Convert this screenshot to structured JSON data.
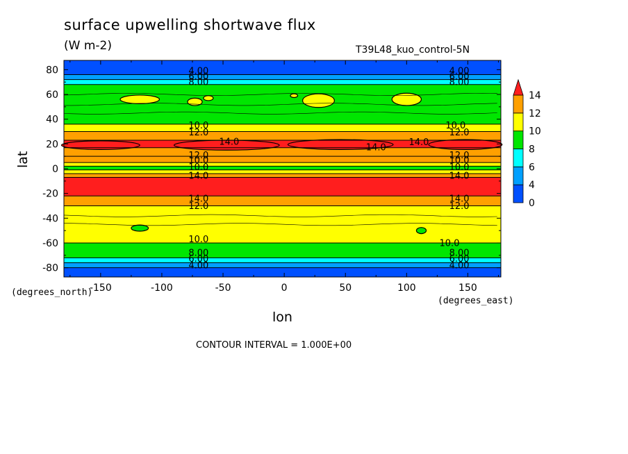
{
  "header": {
    "title": "surface upwelling shortwave flux",
    "units": "(W m-2)",
    "dataset": "T39L48_kuo_control-5N"
  },
  "footer": {
    "contour_interval": "CONTOUR INTERVAL = 1.000E+00"
  },
  "colors": {
    "levels": [
      "#0050ff",
      "#00a0ff",
      "#00ffff",
      "#00e600",
      "#ffff00",
      "#ffa000",
      "#ff1e1e"
    ],
    "contour": "#000000"
  },
  "chart_data": {
    "type": "heatmap",
    "title": "surface upwelling shortwave flux",
    "subtitle": "(W m-2)",
    "xlabel": "lon",
    "ylabel": "lat",
    "x_units": "(degrees_east)",
    "y_units": "(degrees_north)",
    "xlim": [
      -180,
      177
    ],
    "ylim": [
      -87.5,
      87.5
    ],
    "x_ticks": [
      -150,
      -100,
      -50,
      0,
      50,
      100,
      150
    ],
    "y_ticks": [
      -80,
      -60,
      -40,
      -20,
      0,
      20,
      40,
      60,
      80
    ],
    "colorbar": {
      "ticks": [
        0,
        4,
        6,
        8,
        10,
        12,
        14
      ],
      "levels": [
        0,
        4,
        6,
        8,
        10,
        12,
        14
      ],
      "extend": "max"
    },
    "contour_interval": 1.0,
    "zonal_bands": [
      {
        "lat_range": [
          -87.5,
          -80
        ],
        "value": 3
      },
      {
        "lat_range": [
          -80,
          -76
        ],
        "value": 5
      },
      {
        "lat_range": [
          -76,
          -72
        ],
        "value": 7
      },
      {
        "lat_range": [
          -72,
          -60
        ],
        "value": 9
      },
      {
        "lat_range": [
          -60,
          -30
        ],
        "value": 11
      },
      {
        "lat_range": [
          -30,
          -22
        ],
        "value": 13
      },
      {
        "lat_range": [
          -22,
          -7
        ],
        "value": 15
      },
      {
        "lat_range": [
          -7,
          -4
        ],
        "value": 13
      },
      {
        "lat_range": [
          -4,
          -1
        ],
        "value": 11
      },
      {
        "lat_range": [
          -1,
          2
        ],
        "value": 9
      },
      {
        "lat_range": [
          2,
          5
        ],
        "value": 11
      },
      {
        "lat_range": [
          5,
          10
        ],
        "value": 13
      },
      {
        "lat_range": [
          10,
          17
        ],
        "value": 12.5
      },
      {
        "lat_range": [
          17,
          23
        ],
        "value": 15
      },
      {
        "lat_range": [
          23,
          30
        ],
        "value": 13
      },
      {
        "lat_range": [
          30,
          36
        ],
        "value": 11
      },
      {
        "lat_range": [
          36,
          68
        ],
        "value": 9
      },
      {
        "lat_range": [
          68,
          72
        ],
        "value": 7
      },
      {
        "lat_range": [
          72,
          76
        ],
        "value": 5
      },
      {
        "lat_range": [
          76,
          87.5
        ],
        "value": 3
      }
    ],
    "contour_labels": [
      {
        "text": "4.00",
        "lon": -70,
        "lat": 79
      },
      {
        "text": "6.00",
        "lon": -70,
        "lat": 74.5
      },
      {
        "text": "8.00",
        "lon": -70,
        "lat": 70
      },
      {
        "text": "4.00",
        "lon": 143,
        "lat": 79
      },
      {
        "text": "6.00",
        "lon": 143,
        "lat": 74.5
      },
      {
        "text": "8.00",
        "lon": 143,
        "lat": 70
      },
      {
        "text": "10.0",
        "lon": -70,
        "lat": 35
      },
      {
        "text": "12.0",
        "lon": -70,
        "lat": 29.5
      },
      {
        "text": "10.0",
        "lon": 140,
        "lat": 35
      },
      {
        "text": "12.0",
        "lon": 143,
        "lat": 29.5
      },
      {
        "text": "14.0",
        "lon": -45,
        "lat": 22
      },
      {
        "text": "14.0",
        "lon": 75,
        "lat": 17.5
      },
      {
        "text": "14.0",
        "lon": 110,
        "lat": 21.5
      },
      {
        "text": "12.0",
        "lon": -70,
        "lat": 11
      },
      {
        "text": "10.0",
        "lon": -70,
        "lat": 7
      },
      {
        "text": "12.0",
        "lon": 143,
        "lat": 11
      },
      {
        "text": "10.0",
        "lon": 143,
        "lat": 7
      },
      {
        "text": "10.0",
        "lon": -70,
        "lat": 1.5
      },
      {
        "text": "14.0",
        "lon": -70,
        "lat": -5.5
      },
      {
        "text": "10.0",
        "lon": 143,
        "lat": 1.5
      },
      {
        "text": "14.0",
        "lon": 143,
        "lat": -5.5
      },
      {
        "text": "14.0",
        "lon": -70,
        "lat": -24
      },
      {
        "text": "12.0",
        "lon": -70,
        "lat": -30
      },
      {
        "text": "14.0",
        "lon": 143,
        "lat": -24
      },
      {
        "text": "12.0",
        "lon": 143,
        "lat": -30
      },
      {
        "text": "10.0",
        "lon": -70,
        "lat": -57
      },
      {
        "text": "10.0",
        "lon": 135,
        "lat": -60
      },
      {
        "text": "8.00",
        "lon": -70,
        "lat": -68
      },
      {
        "text": "6.00",
        "lon": -70,
        "lat": -72.5
      },
      {
        "text": "4.00",
        "lon": -70,
        "lat": -78
      },
      {
        "text": "8.00",
        "lon": 143,
        "lat": -68
      },
      {
        "text": "6.00",
        "lon": 143,
        "lat": -72.5
      },
      {
        "text": "4.00",
        "lon": 143,
        "lat": -78
      }
    ],
    "patches": [
      {
        "lon": -118,
        "lat": 56,
        "rlon": 16,
        "rlat": 3.5,
        "value": 11
      },
      {
        "lon": -73,
        "lat": 54,
        "rlon": 6,
        "rlat": 3,
        "value": 11
      },
      {
        "lon": -62,
        "lat": 57,
        "rlon": 4,
        "rlat": 2,
        "value": 11
      },
      {
        "lon": 28,
        "lat": 55,
        "rlon": 13,
        "rlat": 5.5,
        "value": 11
      },
      {
        "lon": 100,
        "lat": 56,
        "rlon": 12,
        "rlat": 5,
        "value": 11
      },
      {
        "lon": 8,
        "lat": 59,
        "rlon": 3,
        "rlat": 1.5,
        "value": 11
      },
      {
        "lon": -47,
        "lat": 19,
        "rlon": 43,
        "rlat": 4,
        "value": 15
      },
      {
        "lon": 46,
        "lat": 19.5,
        "rlon": 43,
        "rlat": 4,
        "value": 15
      },
      {
        "lon": -150,
        "lat": 19,
        "rlon": 32,
        "rlat": 3.5,
        "value": 15
      },
      {
        "lon": 148,
        "lat": 19.5,
        "rlon": 30,
        "rlat": 4,
        "value": 15
      },
      {
        "lon": -118,
        "lat": -48,
        "rlon": 7,
        "rlat": 2.5,
        "value": 9
      },
      {
        "lon": 112,
        "lat": -50,
        "rlon": 4,
        "rlat": 2.5,
        "value": 9
      }
    ]
  }
}
